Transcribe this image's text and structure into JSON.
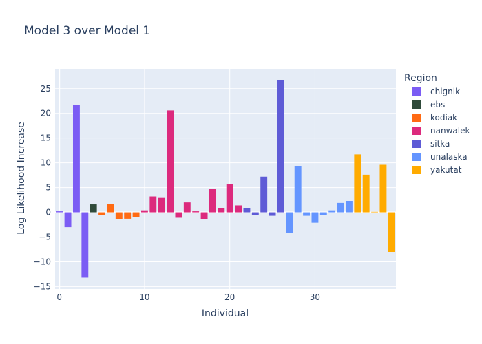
{
  "chart_data": {
    "type": "bar",
    "title": "Model 3 over Model 1",
    "xlabel": "Individual",
    "ylabel": "Log Likelihood Increase",
    "xlim": [
      -0.5,
      39.5
    ],
    "ylim": [
      -15.5,
      29
    ],
    "xticks": [
      0,
      10,
      20,
      30
    ],
    "yticks": [
      -15,
      -10,
      -5,
      0,
      5,
      10,
      15,
      20,
      25
    ],
    "grid": true,
    "legend_title": "Region",
    "legend_position": "right",
    "series": [
      {
        "name": "chignik",
        "color": "#7b5cf4",
        "x": [
          0,
          1,
          2,
          3
        ],
        "values": [
          0.2,
          -3.0,
          21.7,
          -13.2
        ]
      },
      {
        "name": "ebs",
        "color": "#2f4a3a",
        "x": [
          4
        ],
        "values": [
          1.6
        ]
      },
      {
        "name": "kodiak",
        "color": "#ff6a13",
        "x": [
          5,
          6,
          7,
          8,
          9
        ],
        "values": [
          -0.5,
          1.7,
          -1.4,
          -1.3,
          -0.9
        ]
      },
      {
        "name": "nanwalek",
        "color": "#dc2a7d",
        "x": [
          10,
          11,
          12,
          13,
          14,
          15,
          16,
          17,
          18,
          19,
          20,
          21
        ],
        "values": [
          0.4,
          3.2,
          2.9,
          20.6,
          -1.1,
          2.0,
          0.2,
          -1.4,
          4.7,
          0.8,
          5.7,
          1.4
        ]
      },
      {
        "name": "sitka",
        "color": "#5e5bd6",
        "x": [
          22,
          23,
          24,
          25,
          26
        ],
        "values": [
          0.8,
          -0.6,
          7.2,
          -0.7,
          26.7
        ]
      },
      {
        "name": "unalaska",
        "color": "#6495ff",
        "x": [
          27,
          28,
          29,
          30,
          31,
          32,
          33,
          34
        ],
        "values": [
          -4.1,
          9.3,
          -0.7,
          -2.1,
          -0.6,
          0.4,
          1.9,
          2.3
        ]
      },
      {
        "name": "yakutat",
        "color": "#ffab00",
        "x": [
          35,
          36,
          37,
          38,
          39
        ],
        "values": [
          11.7,
          7.6,
          0.1,
          9.6,
          -8.1
        ]
      }
    ]
  }
}
